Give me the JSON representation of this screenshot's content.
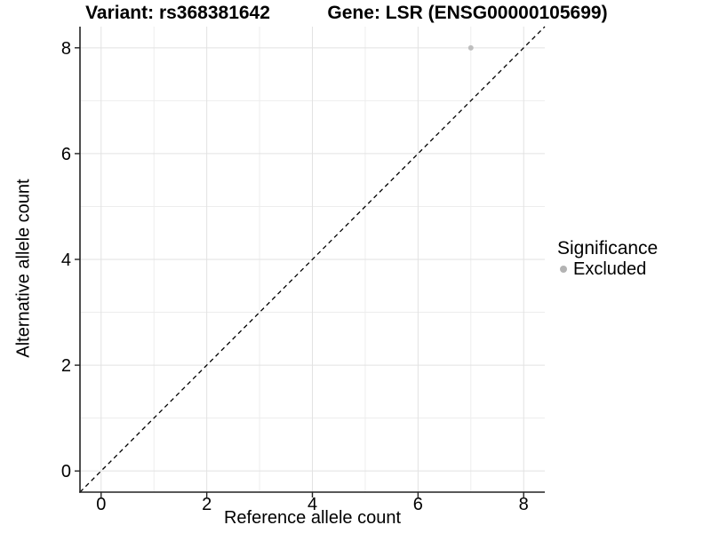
{
  "figure": {
    "title_left": "Variant: rs368381642",
    "title_right": "Gene: LSR (ENSG00000105699)"
  },
  "chart_data": {
    "type": "scatter",
    "xlabel": "Reference allele count",
    "ylabel": "Alternative allele count",
    "xlim": [
      -0.4,
      8.4
    ],
    "ylim": [
      -0.4,
      8.4
    ],
    "xticks": [
      0,
      2,
      4,
      6,
      8
    ],
    "yticks": [
      0,
      2,
      4,
      6,
      8
    ],
    "minor_xticks": [
      1,
      3,
      5,
      7
    ],
    "minor_yticks": [
      1,
      3,
      5,
      7
    ],
    "grid": "on",
    "reference_line": {
      "type": "identity",
      "style": "dashed",
      "x": [
        -0.4,
        8.4
      ],
      "y": [
        -0.4,
        8.4
      ]
    },
    "series": [
      {
        "name": "Excluded",
        "color": "#bebebe",
        "points": [
          [
            7,
            8
          ]
        ]
      }
    ],
    "legend": {
      "title": "Significance",
      "position": "right",
      "items": [
        {
          "label": "Excluded",
          "color": "#b3b3b3"
        }
      ]
    }
  },
  "style": {
    "background": "#ffffff",
    "major_grid_color": "#e2e2e2",
    "minor_grid_color": "#ededed",
    "axis_color": "#222222",
    "text_color": "#000000",
    "dashed_line_color": "#000000"
  }
}
